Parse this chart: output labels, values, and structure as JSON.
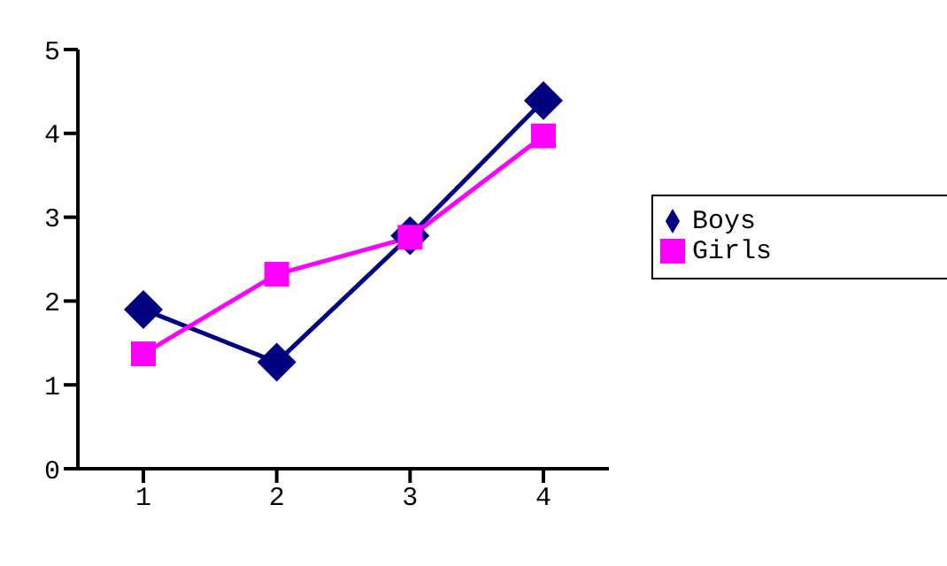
{
  "chart_data": {
    "type": "line",
    "categories": [
      "1",
      "2",
      "3",
      "4"
    ],
    "series": [
      {
        "name": "Boys",
        "color": "#000080",
        "marker": "diamond",
        "values": [
          1.9,
          1.27,
          2.78,
          4.39
        ]
      },
      {
        "name": "Girls",
        "color": "#ff00ff",
        "marker": "square",
        "values": [
          1.37,
          2.32,
          2.76,
          3.97
        ]
      }
    ],
    "ylim": [
      0,
      5
    ],
    "yticks": [
      0,
      1,
      2,
      3,
      4,
      5
    ],
    "grid": false,
    "legend": "right"
  }
}
